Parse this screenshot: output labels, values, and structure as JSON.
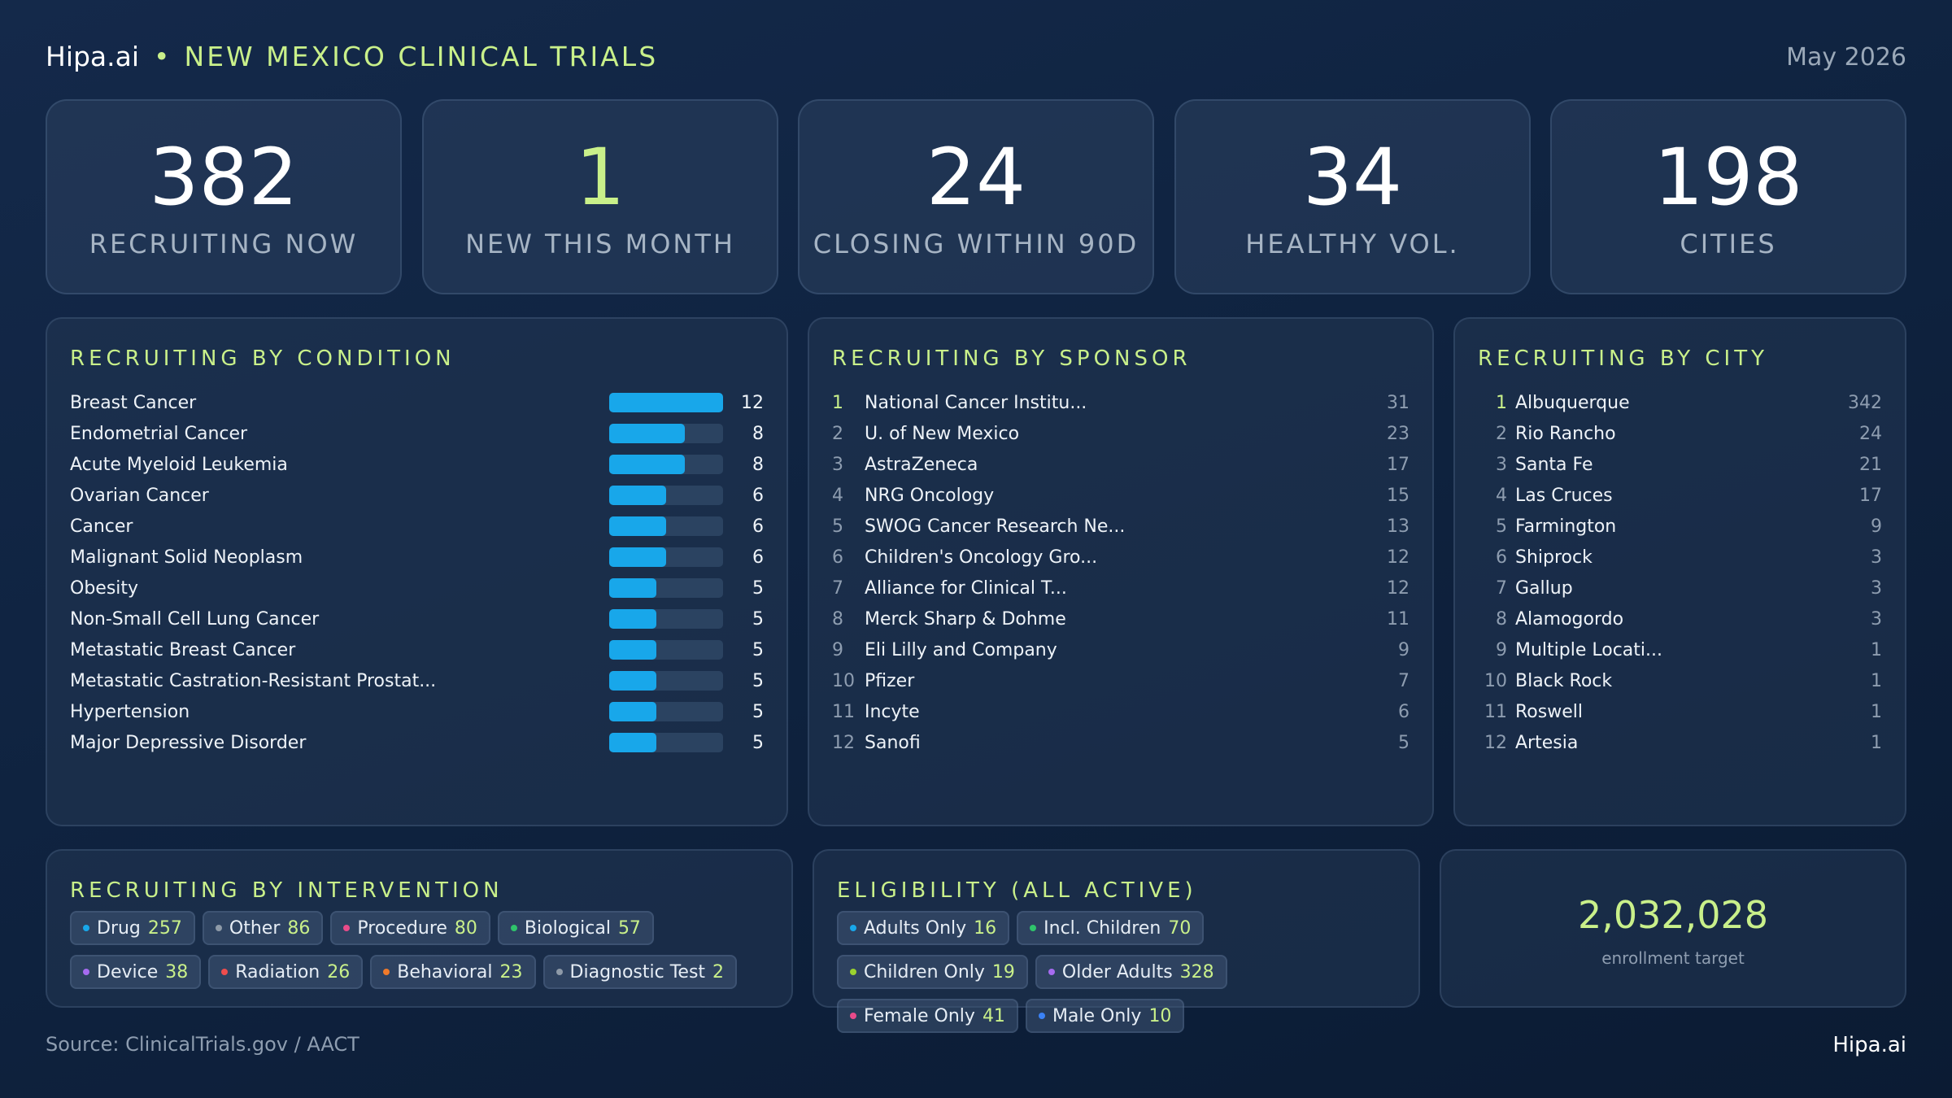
{
  "header": {
    "brand": "Hipa.ai",
    "separator": "•",
    "title": "NEW MEXICO CLINICAL TRIALS",
    "date": "May 2026"
  },
  "stats": [
    {
      "value": "382",
      "label": "RECRUITING NOW"
    },
    {
      "value": "1",
      "label": "NEW THIS MONTH"
    },
    {
      "value": "24",
      "label": "CLOSING WITHIN 90D"
    },
    {
      "value": "34",
      "label": "HEALTHY VOL."
    },
    {
      "value": "198",
      "label": "CITIES"
    }
  ],
  "conditions": {
    "title": "RECRUITING BY CONDITION",
    "max": 12,
    "items": [
      {
        "name": "Breast Cancer",
        "value": 12
      },
      {
        "name": "Endometrial Cancer",
        "value": 8
      },
      {
        "name": "Acute Myeloid Leukemia",
        "value": 8
      },
      {
        "name": "Ovarian Cancer",
        "value": 6
      },
      {
        "name": "Cancer",
        "value": 6
      },
      {
        "name": "Malignant Solid Neoplasm",
        "value": 6
      },
      {
        "name": "Obesity",
        "value": 5
      },
      {
        "name": "Non-Small Cell Lung Cancer",
        "value": 5
      },
      {
        "name": "Metastatic Breast Cancer",
        "value": 5
      },
      {
        "name": "Metastatic Castration-Resistant Prostat...",
        "value": 5
      },
      {
        "name": "Hypertension",
        "value": 5
      },
      {
        "name": "Major Depressive Disorder",
        "value": 5
      }
    ]
  },
  "sponsors": {
    "title": "RECRUITING BY SPONSOR",
    "items": [
      {
        "rank": "1",
        "name": "National Cancer Institu...",
        "count": "31"
      },
      {
        "rank": "2",
        "name": "U. of New Mexico",
        "count": "23"
      },
      {
        "rank": "3",
        "name": "AstraZeneca",
        "count": "17"
      },
      {
        "rank": "4",
        "name": "NRG Oncology",
        "count": "15"
      },
      {
        "rank": "5",
        "name": "SWOG Cancer Research Ne...",
        "count": "13"
      },
      {
        "rank": "6",
        "name": "Children's Oncology Gro...",
        "count": "12"
      },
      {
        "rank": "7",
        "name": "Alliance for Clinical T...",
        "count": "12"
      },
      {
        "rank": "8",
        "name": "Merck Sharp & Dohme",
        "count": "11"
      },
      {
        "rank": "9",
        "name": "Eli Lilly and Company",
        "count": "9"
      },
      {
        "rank": "10",
        "name": "Pfizer",
        "count": "7"
      },
      {
        "rank": "11",
        "name": "Incyte",
        "count": "6"
      },
      {
        "rank": "12",
        "name": "Sanofi",
        "count": "5"
      }
    ]
  },
  "cities": {
    "title": "RECRUITING BY CITY",
    "items": [
      {
        "rank": "1",
        "name": "Albuquerque",
        "count": "342"
      },
      {
        "rank": "2",
        "name": "Rio Rancho",
        "count": "24"
      },
      {
        "rank": "3",
        "name": "Santa Fe",
        "count": "21"
      },
      {
        "rank": "4",
        "name": "Las Cruces",
        "count": "17"
      },
      {
        "rank": "5",
        "name": "Farmington",
        "count": "9"
      },
      {
        "rank": "6",
        "name": "Shiprock",
        "count": "3"
      },
      {
        "rank": "7",
        "name": "Gallup",
        "count": "3"
      },
      {
        "rank": "8",
        "name": "Alamogordo",
        "count": "3"
      },
      {
        "rank": "9",
        "name": "Multiple Locati...",
        "count": "1"
      },
      {
        "rank": "10",
        "name": "Black Rock",
        "count": "1"
      },
      {
        "rank": "11",
        "name": "Roswell",
        "count": "1"
      },
      {
        "rank": "12",
        "name": "Artesia",
        "count": "1"
      }
    ]
  },
  "interventions": {
    "title": "RECRUITING BY INTERVENTION",
    "items": [
      {
        "label": "Drug",
        "value": "257",
        "color": "#18a7ea"
      },
      {
        "label": "Other",
        "value": "86",
        "color": "#8e9aa8"
      },
      {
        "label": "Procedure",
        "value": "80",
        "color": "#e94b8a"
      },
      {
        "label": "Biological",
        "value": "57",
        "color": "#2fc46b"
      },
      {
        "label": "Device",
        "value": "38",
        "color": "#a66bf0"
      },
      {
        "label": "Radiation",
        "value": "26",
        "color": "#ef4d4d"
      },
      {
        "label": "Behavioral",
        "value": "23",
        "color": "#f07a2a"
      },
      {
        "label": "Diagnostic Test",
        "value": "2",
        "color": "#8e9aa8"
      }
    ]
  },
  "eligibility": {
    "title": "ELIGIBILITY (ALL ACTIVE)",
    "items": [
      {
        "label": "Adults Only",
        "value": "16",
        "color": "#18a7ea"
      },
      {
        "label": "Incl. Children",
        "value": "70",
        "color": "#2fc46b"
      },
      {
        "label": "Children Only",
        "value": "19",
        "color": "#9ad22e"
      },
      {
        "label": "Older Adults",
        "value": "328",
        "color": "#a66bf0"
      },
      {
        "label": "Female Only",
        "value": "41",
        "color": "#e94b8a"
      },
      {
        "label": "Male Only",
        "value": "10",
        "color": "#3b82f6"
      }
    ]
  },
  "enrollment": {
    "value": "2,032,028",
    "label": "enrollment target"
  },
  "footer": {
    "source": "Source: ClinicalTrials.gov / AACT",
    "brand": "Hipa.ai"
  }
}
